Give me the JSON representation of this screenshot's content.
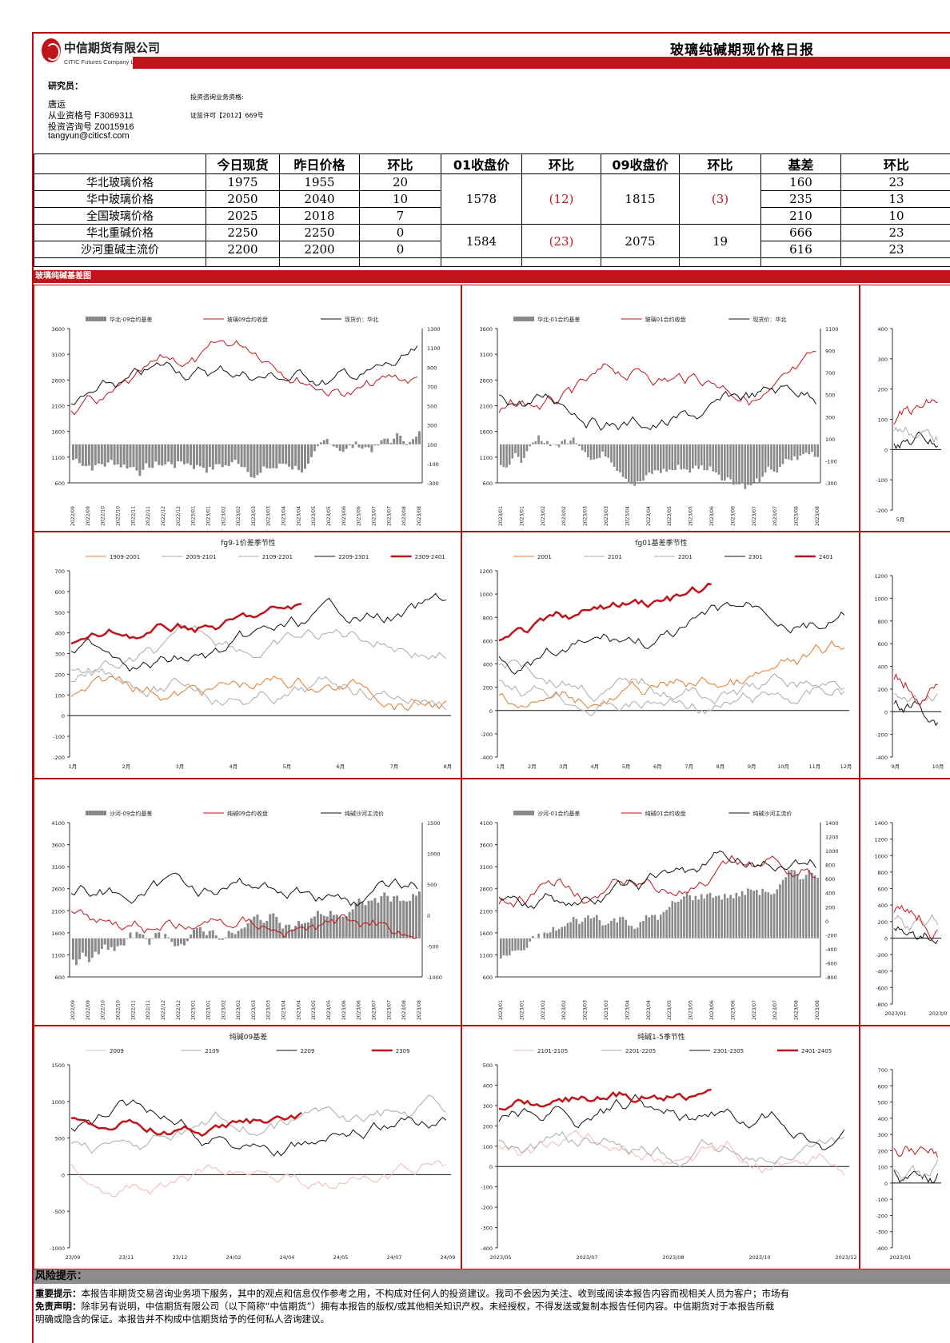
{
  "header": {
    "company_cn": "中信期货有限公司",
    "company_en": "CITIC Futures Company Limited",
    "title": "玻璃纯碱期现价格日报"
  },
  "analyst": {
    "heading": "研究员：",
    "name": "唐运",
    "qual_no": "从业资格号 F3069311",
    "consult_no": "投资咨询号 Z0015916",
    "email": "tangyun@citicsf.com",
    "biz_label": "投资咨询业务资格:",
    "license": "证监许可【2012】669号"
  },
  "price_table": {
    "headers": [
      "",
      "今日现货",
      "昨日价格",
      "环比",
      "01收盘价",
      "环比",
      "09收盘价",
      "环比",
      "基差",
      "环比"
    ],
    "rows": [
      {
        "label": "华北玻璃价格",
        "today": "1975",
        "yesterday": "1955",
        "chg": "20",
        "basis": "160",
        "basis_chg": "23"
      },
      {
        "label": "华中玻璃价格",
        "today": "2050",
        "yesterday": "2040",
        "chg": "10",
        "basis": "235",
        "basis_chg": "13"
      },
      {
        "label": "全国玻璃价格",
        "today": "2025",
        "yesterday": "2018",
        "chg": "7",
        "basis": "210",
        "basis_chg": "10"
      },
      {
        "label": "华北重碱价格",
        "today": "2250",
        "yesterday": "2250",
        "chg": "0",
        "basis": "666",
        "basis_chg": "23"
      },
      {
        "label": "沙河重碱主流价",
        "today": "2200",
        "yesterday": "2200",
        "chg": "0",
        "basis": "616",
        "basis_chg": "23"
      }
    ],
    "glass_futures": {
      "c01": "1578",
      "c01_chg": "(12)",
      "c09": "1815",
      "c09_chg": "(3)"
    },
    "soda_futures": {
      "c01": "1584",
      "c01_chg": "(23)",
      "c09": "2075",
      "c09_chg": "19"
    }
  },
  "section_title": "玻璃纯碱基差图",
  "colors": {
    "brand_red": "#c0141b",
    "bar_gray": "#8a8a8a",
    "series_red": "#c0141b"
  },
  "charts": [
    {
      "id": "c1",
      "legend": [
        "华北-09合约基差",
        "玻璃09合约收盘",
        "现货价：华北"
      ],
      "left_ticks": [
        "3600",
        "3100",
        "2600",
        "2100",
        "1600",
        "1100",
        "600"
      ],
      "right_ticks": [
        "1300",
        "1100",
        "900",
        "700",
        "500",
        "300",
        "100",
        "-100",
        "-300"
      ],
      "x_ticks": [
        "2022/09",
        "2022/09",
        "2022/10",
        "2022/10",
        "2022/11",
        "2022/11",
        "2022/12",
        "2022/12",
        "2023/01",
        "2023/01",
        "2023/02",
        "2023/02",
        "2023/03",
        "2023/03",
        "2023/04",
        "2023/04",
        "2023/05",
        "2023/05",
        "2023/06",
        "2023/06",
        "2023/07",
        "2023/07",
        "2023/08",
        "2023/08"
      ]
    },
    {
      "id": "c2",
      "legend": [
        "华北-01合约基差",
        "玻璃01合约收盘",
        "现货价：华北"
      ],
      "left_ticks": [
        "3600",
        "3100",
        "2600",
        "2100",
        "1600",
        "1100",
        "600"
      ],
      "right_ticks": [
        "1100",
        "900",
        "700",
        "500",
        "300",
        "100",
        "-100",
        "-300"
      ],
      "x_ticks": [
        "2023/01",
        "2023/01",
        "2023/02",
        "2023/02",
        "2023/03",
        "2023/03",
        "2023/04",
        "2023/04",
        "2023/05",
        "2023/05",
        "2023/06",
        "2023/06",
        "2023/07",
        "2023/07",
        "2023/08",
        "2023/08"
      ]
    },
    {
      "id": "c3",
      "left_ticks": [
        "400",
        "300",
        "200",
        "100",
        "0",
        "-100",
        "-200"
      ],
      "x_ticks": [
        "5月"
      ]
    },
    {
      "id": "c4",
      "title": "fg9-1价差季节性",
      "legend": [
        "1909-2001",
        "2009-2101",
        "2109-2201",
        "2209-2301",
        "2309-2401"
      ],
      "left_ticks": [
        "700",
        "600",
        "500",
        "400",
        "300",
        "200",
        "100",
        "0",
        "-100",
        "-200"
      ],
      "x_ticks": [
        "1月",
        "2月",
        "3月",
        "4月",
        "5月",
        "6月",
        "7月",
        "8月"
      ]
    },
    {
      "id": "c5",
      "title": "fg01基差季节性",
      "legend": [
        "2001",
        "2101",
        "2201",
        "2301",
        "2401"
      ],
      "left_ticks": [
        "1200",
        "1000",
        "800",
        "600",
        "400",
        "200",
        "0",
        "-200",
        "-400"
      ],
      "x_ticks": [
        "1月",
        "2月",
        "3月",
        "4月",
        "5月",
        "6月",
        "7月",
        "8月",
        "9月",
        "10月",
        "11月",
        "12月"
      ]
    },
    {
      "id": "c6",
      "left_ticks": [
        "1200",
        "1000",
        "800",
        "600",
        "400",
        "200",
        "0",
        "-200",
        "-400"
      ],
      "x_ticks": [
        "9月",
        "10月"
      ]
    },
    {
      "id": "c7",
      "legend": [
        "沙河-09合约基差",
        "纯碱09合约收盘",
        "纯碱沙河主流价"
      ],
      "left_ticks": [
        "4100",
        "3600",
        "3100",
        "2600",
        "2100",
        "1600",
        "1100",
        "600"
      ],
      "right_ticks": [
        "1500",
        "1000",
        "500",
        "0",
        "-500",
        "-1000"
      ],
      "x_ticks": [
        "2022/09",
        "2022/09",
        "2022/10",
        "2022/10",
        "2022/11",
        "2022/11",
        "2022/12",
        "2022/12",
        "2023/01",
        "2023/01",
        "2023/02",
        "2023/02",
        "2023/03",
        "2023/03",
        "2023/04",
        "2023/04",
        "2023/05",
        "2023/05",
        "2023/06",
        "2023/06",
        "2023/07",
        "2023/07",
        "2023/08",
        "2023/08"
      ]
    },
    {
      "id": "c8",
      "legend": [
        "沙河-01合约基差",
        "纯碱01合约收盘",
        "纯碱沙河主流价"
      ],
      "left_ticks": [
        "4100",
        "3600",
        "3100",
        "2600",
        "2100",
        "1600",
        "1100",
        "600"
      ],
      "right_ticks": [
        "1400",
        "1200",
        "1000",
        "800",
        "600",
        "400",
        "200",
        "0",
        "-200",
        "-400",
        "-600",
        "-800"
      ],
      "x_ticks": [
        "2023/01",
        "2023/01",
        "2023/02",
        "2023/02",
        "2023/03",
        "2023/03",
        "2023/04",
        "2023/04",
        "2023/05",
        "2023/05",
        "2023/06",
        "2023/06",
        "2023/07",
        "2023/07",
        "2023/08",
        "2023/08"
      ]
    },
    {
      "id": "c9",
      "left_ticks": [
        "1400",
        "1200",
        "1000",
        "800",
        "600",
        "400",
        "200",
        "0",
        "-200",
        "-400",
        "-600",
        "-800"
      ],
      "x_ticks": [
        "2023/01",
        "2023/0"
      ]
    },
    {
      "id": "c10",
      "title": "纯碱09基差",
      "legend": [
        "2009",
        "2109",
        "2209",
        "2309"
      ],
      "left_ticks": [
        "1500",
        "1000",
        "500",
        "0",
        "-500",
        "-1000"
      ],
      "x_ticks": [
        "23/09",
        "23/11",
        "23/12",
        "24/02",
        "24/04",
        "24/05",
        "24/07",
        "24/09"
      ]
    },
    {
      "id": "c11",
      "title": "纯碱1-5季节性",
      "legend": [
        "2101-2105",
        "2201-2205",
        "2301-2305",
        "2401-2405"
      ],
      "left_ticks": [
        "500",
        "400",
        "300",
        "200",
        "100",
        "0",
        "-100",
        "-200",
        "-300",
        "-400"
      ],
      "x_ticks": [
        "2023/05",
        "2023/07",
        "2023/08",
        "2023/10",
        "2023/12"
      ]
    },
    {
      "id": "c12",
      "left_ticks": [
        "700",
        "600",
        "500",
        "400",
        "300",
        "200",
        "100",
        "0",
        "-100",
        "-200",
        "-300",
        "-400"
      ],
      "x_ticks": [
        "2023/01"
      ]
    }
  ],
  "footer": {
    "risk_title": "风险提示：",
    "notice_label": "重要提示：",
    "notice_text": "本报告非期货交易咨询业务项下服务，其中的观点和信息仅作参考之用，不构成对任何人的投资建议。我司不会因为关注、收到或阅读本报告内容而视相关人员为客户；市场有",
    "disclaimer_label": "免责声明：",
    "disclaimer_text": "除非另有说明，中信期货有限公司（以下简称“中信期货”）拥有本报告的版权/或其他相关知识产权。未经授权，不得发送或复制本报告任何内容。中信期货对于本报告所载",
    "disclaimer_text2": "明确或隐含的保证。本报告并不构成中信期货给予的任何私人咨询建议。"
  }
}
